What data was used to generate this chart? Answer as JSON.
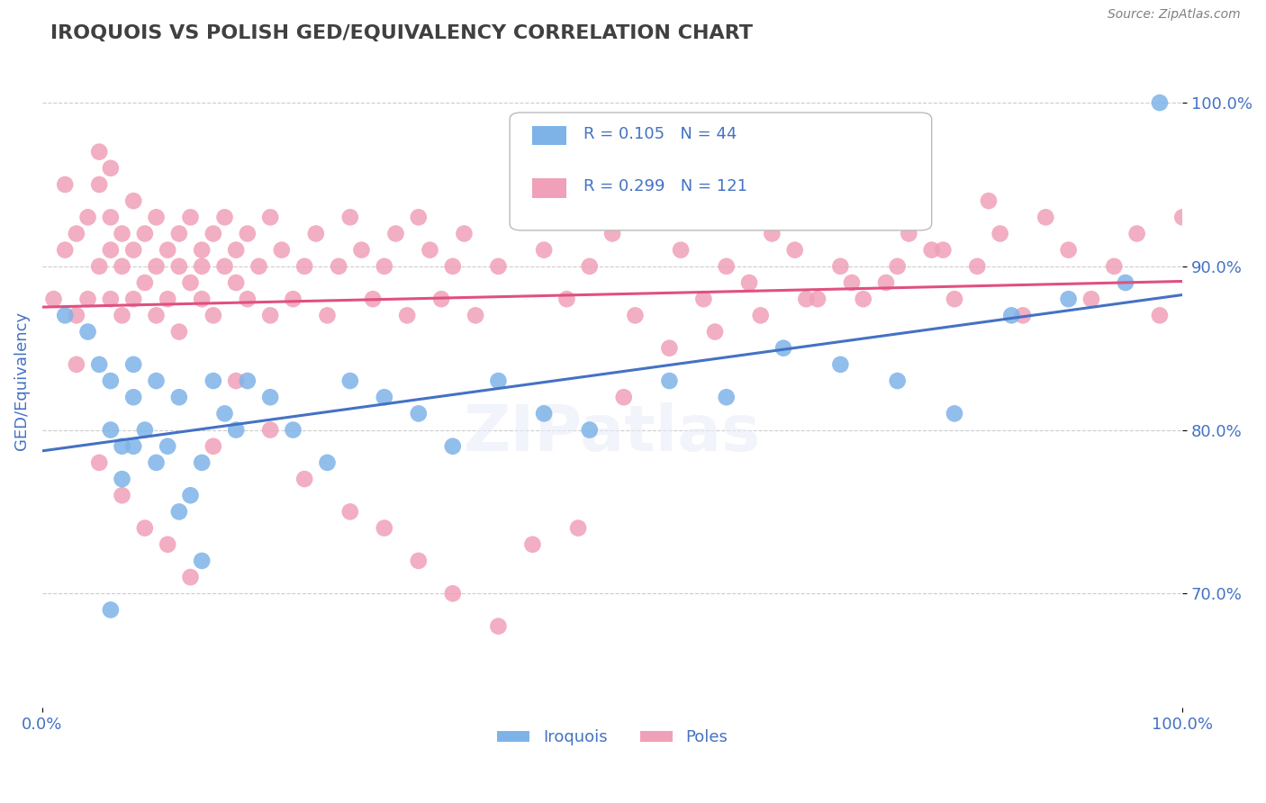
{
  "title": "IROQUOIS VS POLISH GED/EQUIVALENCY CORRELATION CHART",
  "source": "Source: ZipAtlas.com",
  "xlabel": "",
  "ylabel": "GED/Equivalency",
  "xlim": [
    0,
    1.0
  ],
  "ylim": [
    0.63,
    1.03
  ],
  "yticks": [
    0.7,
    0.8,
    0.9,
    1.0
  ],
  "ytick_labels": [
    "70.0%",
    "80.0%",
    "90.0%",
    "100.0%"
  ],
  "xticks": [
    0.0,
    1.0
  ],
  "xtick_labels": [
    "0.0%",
    "100.0%"
  ],
  "iroquois_color": "#7EB3E8",
  "poles_color": "#F0A0B8",
  "iroquois_line_color": "#4472C4",
  "poles_line_color": "#E05080",
  "background_color": "#FFFFFF",
  "grid_color": "#CCCCCC",
  "R_iroquois": 0.105,
  "N_iroquois": 44,
  "R_poles": 0.299,
  "N_poles": 121,
  "title_color": "#404040",
  "axis_label_color": "#4472C4",
  "tick_label_color": "#4472C4",
  "legend_label_iroquois": "Iroquois",
  "legend_label_poles": "Poles",
  "iroquois_x": [
    0.02,
    0.04,
    0.05,
    0.06,
    0.06,
    0.07,
    0.07,
    0.08,
    0.08,
    0.09,
    0.1,
    0.1,
    0.11,
    0.12,
    0.13,
    0.14,
    0.15,
    0.16,
    0.17,
    0.18,
    0.2,
    0.22,
    0.25,
    0.27,
    0.3,
    0.33,
    0.36,
    0.4,
    0.44,
    0.48,
    0.12,
    0.14,
    0.06,
    0.08,
    0.55,
    0.6,
    0.65,
    0.7,
    0.75,
    0.8,
    0.85,
    0.9,
    0.95,
    0.98
  ],
  "iroquois_y": [
    0.87,
    0.86,
    0.84,
    0.83,
    0.8,
    0.79,
    0.77,
    0.84,
    0.82,
    0.8,
    0.83,
    0.78,
    0.79,
    0.82,
    0.76,
    0.78,
    0.83,
    0.81,
    0.8,
    0.83,
    0.82,
    0.8,
    0.78,
    0.83,
    0.82,
    0.81,
    0.79,
    0.83,
    0.81,
    0.8,
    0.75,
    0.72,
    0.69,
    0.79,
    0.83,
    0.82,
    0.85,
    0.84,
    0.83,
    0.81,
    0.87,
    0.88,
    0.89,
    1.0
  ],
  "poles_x": [
    0.01,
    0.02,
    0.02,
    0.03,
    0.03,
    0.04,
    0.04,
    0.05,
    0.05,
    0.05,
    0.06,
    0.06,
    0.06,
    0.06,
    0.07,
    0.07,
    0.07,
    0.08,
    0.08,
    0.08,
    0.09,
    0.09,
    0.1,
    0.1,
    0.1,
    0.11,
    0.11,
    0.12,
    0.12,
    0.12,
    0.13,
    0.13,
    0.14,
    0.14,
    0.14,
    0.15,
    0.15,
    0.16,
    0.16,
    0.17,
    0.17,
    0.18,
    0.18,
    0.19,
    0.2,
    0.2,
    0.21,
    0.22,
    0.23,
    0.24,
    0.25,
    0.26,
    0.27,
    0.28,
    0.29,
    0.3,
    0.31,
    0.32,
    0.33,
    0.34,
    0.35,
    0.36,
    0.37,
    0.38,
    0.4,
    0.42,
    0.44,
    0.46,
    0.48,
    0.5,
    0.52,
    0.54,
    0.56,
    0.58,
    0.6,
    0.62,
    0.64,
    0.66,
    0.68,
    0.7,
    0.72,
    0.74,
    0.76,
    0.78,
    0.8,
    0.82,
    0.84,
    0.86,
    0.88,
    0.9,
    0.92,
    0.94,
    0.96,
    0.98,
    1.0,
    0.03,
    0.05,
    0.07,
    0.09,
    0.11,
    0.13,
    0.15,
    0.17,
    0.2,
    0.23,
    0.27,
    0.3,
    0.33,
    0.36,
    0.4,
    0.43,
    0.47,
    0.51,
    0.55,
    0.59,
    0.63,
    0.67,
    0.71,
    0.75,
    0.79,
    0.83
  ],
  "poles_y": [
    0.88,
    0.91,
    0.95,
    0.92,
    0.87,
    0.93,
    0.88,
    0.9,
    0.95,
    0.97,
    0.91,
    0.88,
    0.93,
    0.96,
    0.92,
    0.87,
    0.9,
    0.88,
    0.94,
    0.91,
    0.89,
    0.92,
    0.9,
    0.87,
    0.93,
    0.91,
    0.88,
    0.9,
    0.92,
    0.86,
    0.89,
    0.93,
    0.91,
    0.88,
    0.9,
    0.92,
    0.87,
    0.9,
    0.93,
    0.89,
    0.91,
    0.88,
    0.92,
    0.9,
    0.87,
    0.93,
    0.91,
    0.88,
    0.9,
    0.92,
    0.87,
    0.9,
    0.93,
    0.91,
    0.88,
    0.9,
    0.92,
    0.87,
    0.93,
    0.91,
    0.88,
    0.9,
    0.92,
    0.87,
    0.9,
    0.93,
    0.91,
    0.88,
    0.9,
    0.92,
    0.87,
    0.93,
    0.91,
    0.88,
    0.9,
    0.89,
    0.92,
    0.91,
    0.88,
    0.9,
    0.88,
    0.89,
    0.92,
    0.91,
    0.88,
    0.9,
    0.92,
    0.87,
    0.93,
    0.91,
    0.88,
    0.9,
    0.92,
    0.87,
    0.93,
    0.84,
    0.78,
    0.76,
    0.74,
    0.73,
    0.71,
    0.79,
    0.83,
    0.8,
    0.77,
    0.75,
    0.74,
    0.72,
    0.7,
    0.68,
    0.73,
    0.74,
    0.82,
    0.85,
    0.86,
    0.87,
    0.88,
    0.89,
    0.9,
    0.91,
    0.94
  ]
}
